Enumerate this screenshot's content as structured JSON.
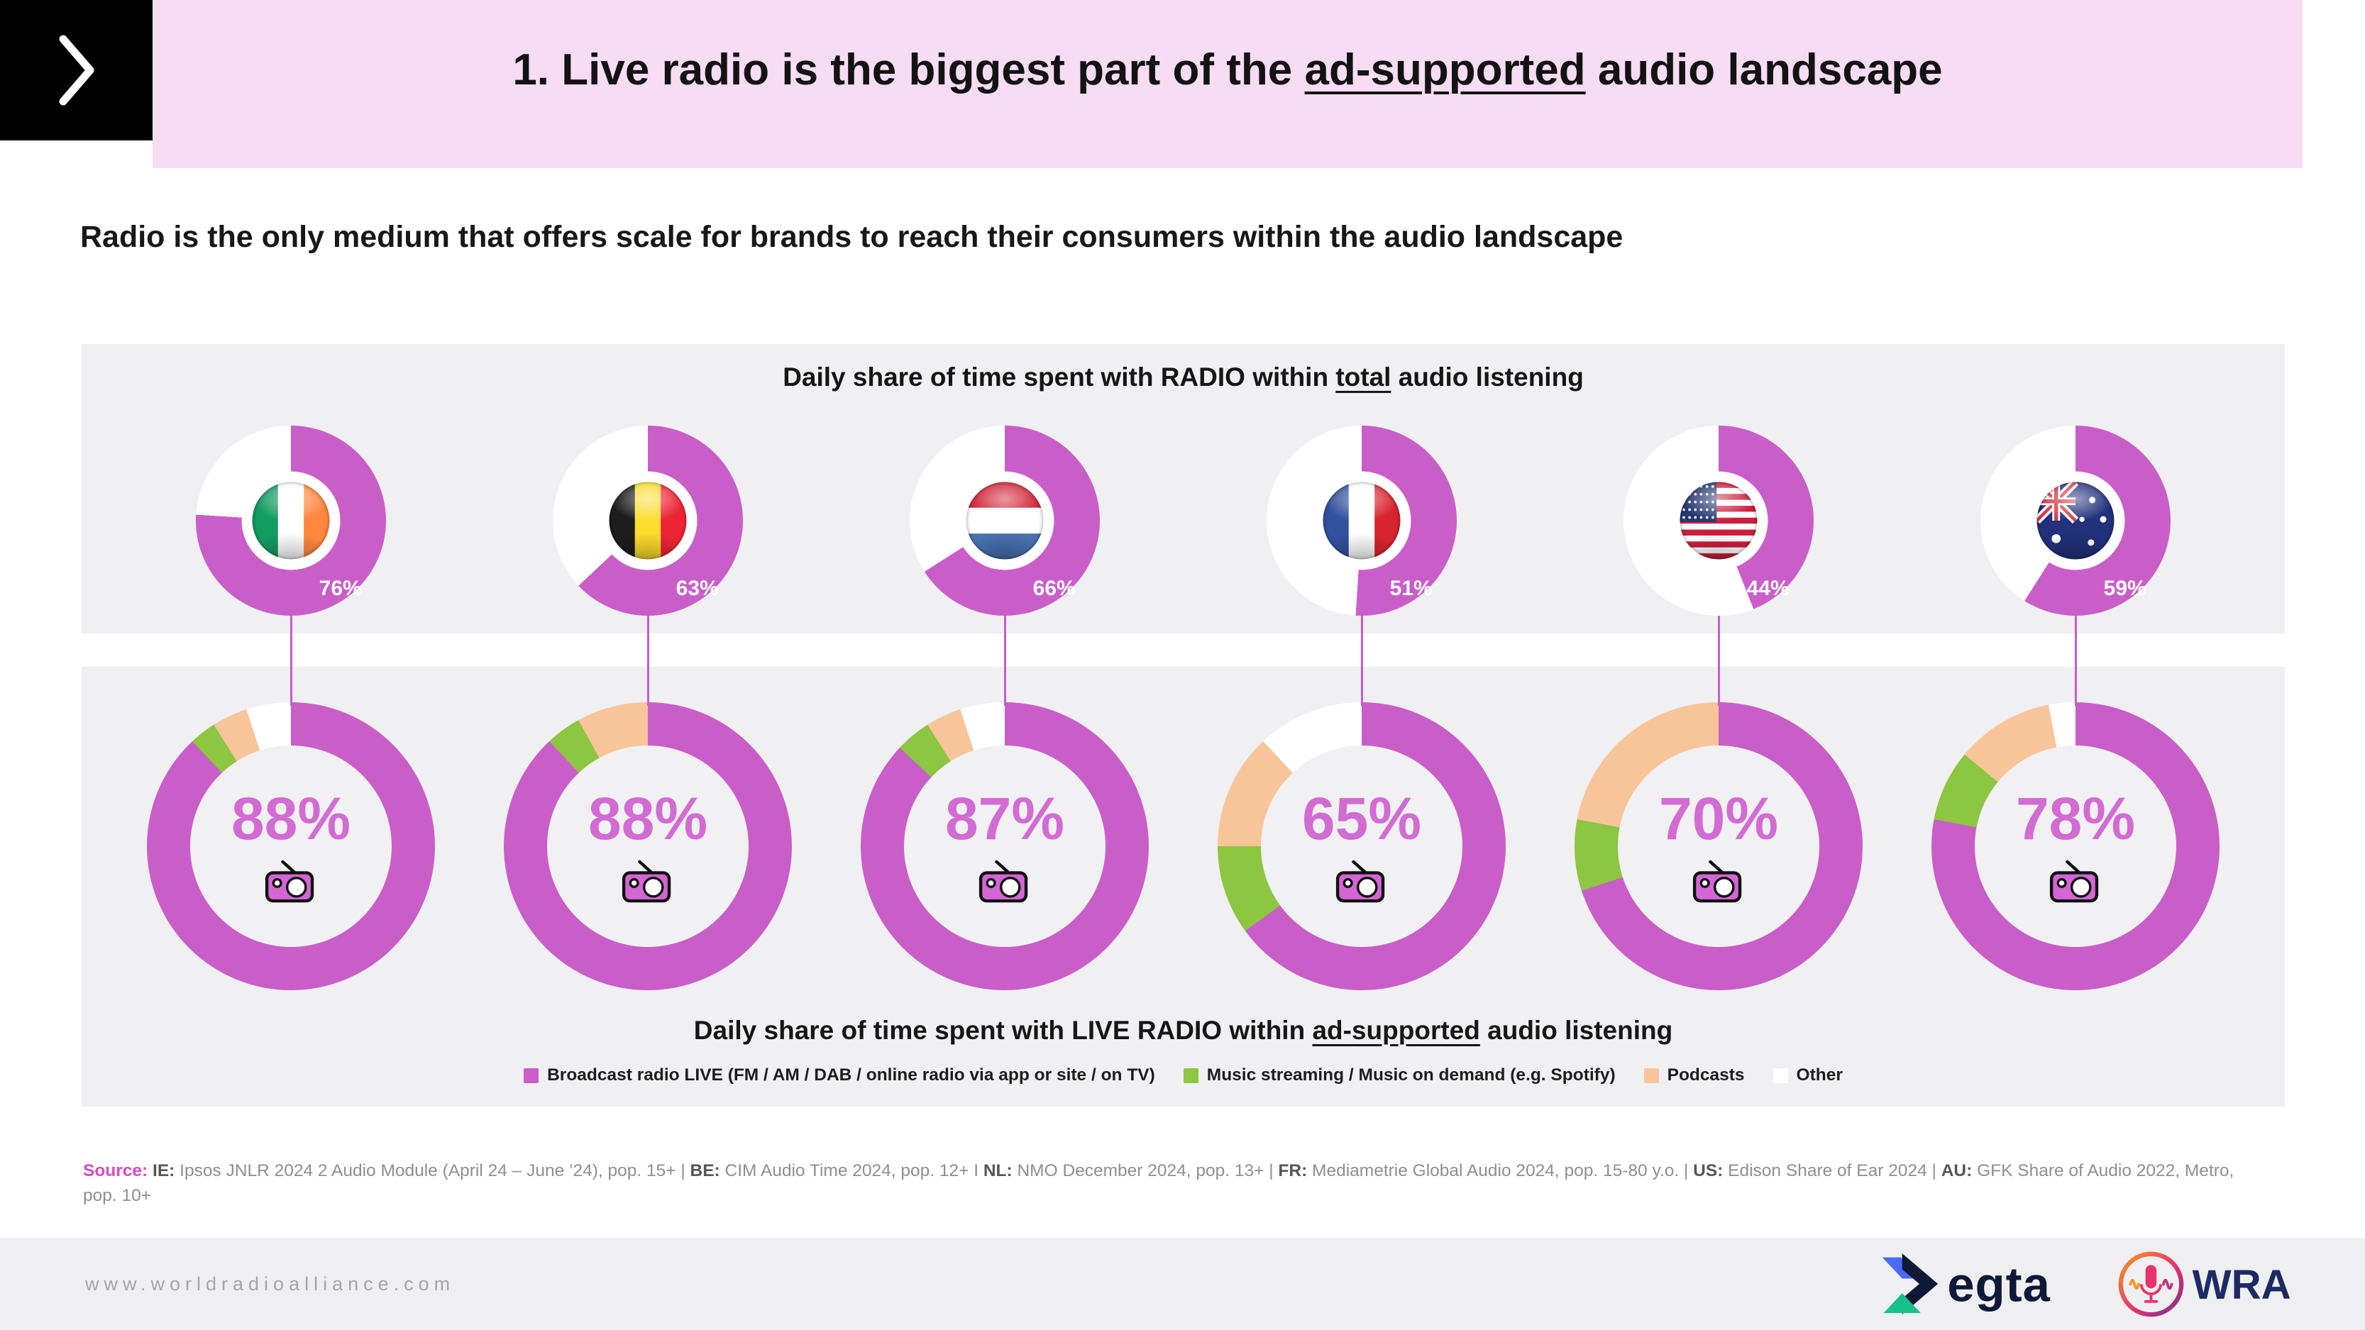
{
  "header": {
    "chevron": "›",
    "title": {
      "before": "1. Live radio is the biggest part of the ",
      "underlined": "ad-supported",
      "after": " audio landscape"
    }
  },
  "subtitle": "Radio is the only medium that offers scale for brands to reach their consumers within the audio landscape",
  "colors": {
    "accent_magenta": "#ca5ec9",
    "green": "#8dc641",
    "peach": "#f8c59a",
    "other_white": "#ffffff",
    "header_pink": "#f7dcf3",
    "panel_gray": "#f0eff1",
    "big_value_text": "#d26cd3"
  },
  "top_chart": {
    "title": {
      "before": "Daily share of time spent with RADIO within ",
      "underlined": "total",
      "after": " audio listening"
    }
  },
  "bottom_chart": {
    "title": {
      "before": "Daily share of time spent with LIVE RADIO within ",
      "underlined": "ad-supported",
      "after": " audio listening"
    }
  },
  "legend": [
    {
      "label": "Broadcast radio LIVE (FM / AM / DAB / online radio via app or site / on TV)",
      "color": "#ca5ec9"
    },
    {
      "label": "Music streaming / Music on demand (e.g. Spotify)",
      "color": "#8dc641"
    },
    {
      "label": "Podcasts",
      "color": "#f8c59a"
    },
    {
      "label": "Other",
      "color": "#ffffff"
    }
  ],
  "countries": [
    {
      "name": "Ireland",
      "flag": "ie",
      "radio_share_pct": 76,
      "live_radio_pct": 88,
      "segments": [
        88,
        3,
        4,
        5
      ]
    },
    {
      "name": "Belgium",
      "flag": "be",
      "radio_share_pct": 63,
      "live_radio_pct": 88,
      "segments": [
        88,
        4,
        8,
        0
      ]
    },
    {
      "name": "Netherlands",
      "flag": "nl",
      "radio_share_pct": 66,
      "live_radio_pct": 87,
      "segments": [
        87,
        4,
        4,
        5
      ]
    },
    {
      "name": "France",
      "flag": "fr",
      "radio_share_pct": 51,
      "live_radio_pct": 65,
      "segments": [
        65,
        10,
        13,
        12
      ]
    },
    {
      "name": "United States",
      "flag": "us",
      "radio_share_pct": 44,
      "live_radio_pct": 70,
      "segments": [
        70,
        8,
        22,
        0
      ]
    },
    {
      "name": "Australia",
      "flag": "au",
      "radio_share_pct": 59,
      "live_radio_pct": 78,
      "segments": [
        78,
        8,
        11,
        3
      ]
    }
  ],
  "source": {
    "label": "Source:",
    "segments": [
      {
        "text": "IE:",
        "bold": true
      },
      {
        "text": " Ipsos JNLR 2024 2 Audio Module (April 24 – June ’24), pop. 15+ | ",
        "bold": false
      },
      {
        "text": "BE:",
        "bold": true
      },
      {
        "text": " CIM Audio Time 2024, pop. 12+ I ",
        "bold": false
      },
      {
        "text": "NL:",
        "bold": true
      },
      {
        "text": " NMO December 2024, pop. 13+ | ",
        "bold": false
      },
      {
        "text": "FR:",
        "bold": true
      },
      {
        "text": " Mediametrie Global Audio 2024, pop. 15-80 y.o. |  ",
        "bold": false
      },
      {
        "text": "US:",
        "bold": true
      },
      {
        "text": " Edison Share of Ear 2024 | ",
        "bold": false
      },
      {
        "text": "AU:",
        "bold": true
      },
      {
        "text": " GFK Share of Audio 2022, Metro, pop. 10+",
        "bold": false
      }
    ]
  },
  "footer": {
    "url": "www.worldradioalliance.com",
    "logos": [
      {
        "name": "egta"
      },
      {
        "name": "WRA"
      }
    ]
  },
  "chart_data": [
    {
      "type": "pie",
      "subtype": "donut-row",
      "title": "Daily share of time spent with RADIO within total audio listening",
      "categories": [
        "Ireland",
        "Belgium",
        "Netherlands",
        "France",
        "United States",
        "Australia"
      ],
      "values": [
        76,
        63,
        66,
        51,
        44,
        59
      ],
      "unit": "%",
      "colors": {
        "radio": "#ca5ec9",
        "remainder": "#ffffff"
      }
    },
    {
      "type": "pie",
      "subtype": "donut-row",
      "title": "Daily share of time spent with LIVE RADIO within ad-supported audio listening",
      "categories": [
        "Ireland",
        "Belgium",
        "Netherlands",
        "France",
        "United States",
        "Australia"
      ],
      "series": [
        {
          "name": "Broadcast radio LIVE (FM / AM / DAB / online radio via app or site / on TV)",
          "color": "#ca5ec9",
          "values": [
            88,
            88,
            87,
            65,
            70,
            78
          ]
        },
        {
          "name": "Music streaming / Music on demand (e.g. Spotify)",
          "color": "#8dc641",
          "values": [
            3,
            4,
            4,
            10,
            8,
            8
          ]
        },
        {
          "name": "Podcasts",
          "color": "#f8c59a",
          "values": [
            4,
            8,
            4,
            13,
            22,
            11
          ]
        },
        {
          "name": "Other",
          "color": "#ffffff",
          "values": [
            5,
            0,
            5,
            12,
            0,
            3
          ]
        }
      ],
      "unit": "%",
      "legend_position": "bottom"
    }
  ]
}
